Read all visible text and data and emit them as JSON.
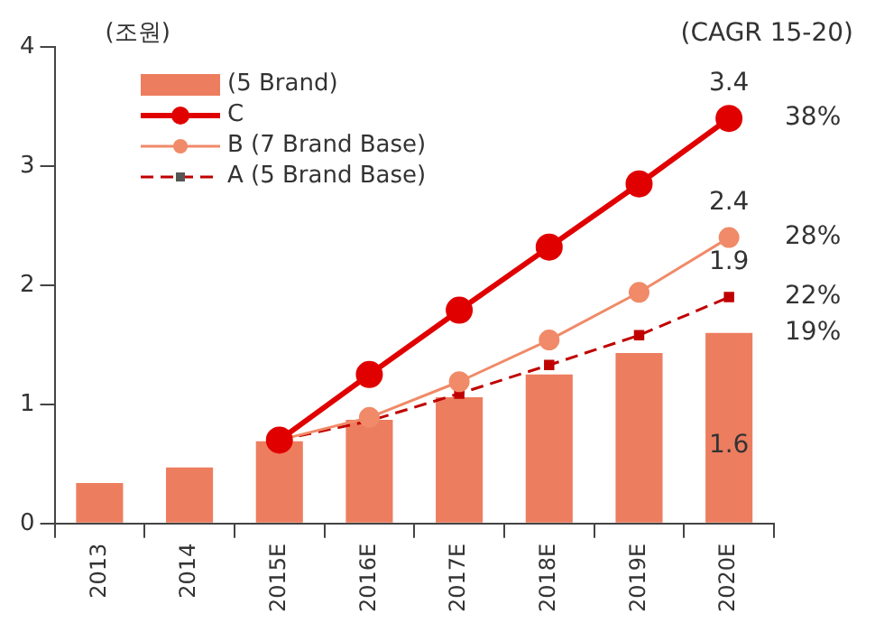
{
  "chart_data": {
    "type": "bar",
    "ylabel": "(조원)",
    "categories": [
      "2013",
      "2014",
      "2015E",
      "2016E",
      "2017E",
      "2018E",
      "2019E",
      "2020E"
    ],
    "series": [
      {
        "name": "(5 Brand)",
        "color": "#ed7d5f",
        "values": [
          0.34,
          0.47,
          0.69,
          0.87,
          1.06,
          1.25,
          1.43,
          1.6
        ],
        "value_labels": [
          null,
          null,
          null,
          null,
          null,
          null,
          null,
          "1.6"
        ]
      },
      {
        "name": "C",
        "type": "line",
        "color": "#e00000",
        "marker": "circle",
        "line_style": "solid",
        "values": [
          null,
          null,
          0.7,
          1.25,
          1.79,
          2.32,
          2.85,
          3.4
        ],
        "value_labels": [
          null,
          null,
          null,
          null,
          null,
          null,
          null,
          "3.4"
        ]
      },
      {
        "name": "B (7 Brand Base)",
        "type": "line",
        "color": "#f08a68",
        "marker": "circle",
        "line_style": "solid",
        "values": [
          null,
          null,
          0.7,
          0.89,
          1.19,
          1.54,
          1.94,
          2.4
        ],
        "value_labels": [
          null,
          null,
          null,
          null,
          null,
          null,
          null,
          "2.4"
        ]
      },
      {
        "name": "A (5 Brand Base)",
        "type": "line",
        "color": "#c00000",
        "marker": "square",
        "line_style": "dashed",
        "values": [
          null,
          null,
          0.7,
          0.86,
          1.09,
          1.33,
          1.58,
          1.9
        ],
        "value_labels": [
          null,
          null,
          null,
          null,
          null,
          null,
          null,
          "1.9"
        ]
      }
    ],
    "ylim": [
      0,
      4
    ],
    "yticks": [
      0,
      1,
      2,
      3,
      4
    ],
    "grid": false,
    "legend": "top left",
    "annotations": [
      "(CAGR 15-20)",
      {
        "text": "38%",
        "x": "2020E",
        "y": 3.4
      },
      {
        "text": "28%",
        "x": "2020E",
        "y": 2.4
      },
      {
        "text": "22%",
        "x": "2020E",
        "y": 1.9
      },
      {
        "text": "19%",
        "x": "2020E",
        "y": 1.6
      }
    ]
  }
}
